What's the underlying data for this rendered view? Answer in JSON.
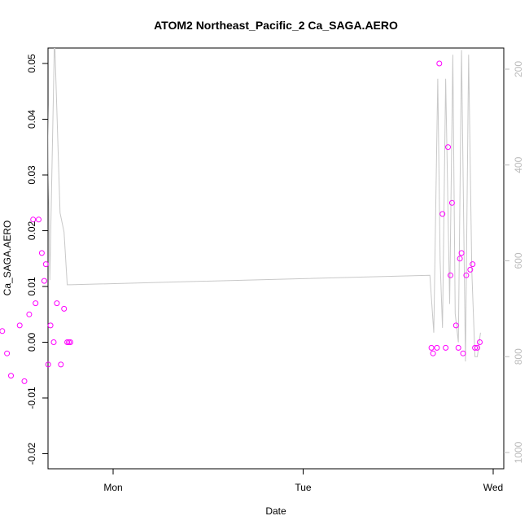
{
  "chart_data": {
    "type": "scatter",
    "title": "ATOM2 Northeast_Pacific_2 Ca_SAGA.AERO",
    "xlabel": "Date",
    "ylabel": "Ca_SAGA.AERO",
    "x_ticks": [
      "Mon",
      "Tue",
      "Wed"
    ],
    "ylim": [
      -0.022,
      0.052
    ],
    "y_ticks": [
      "-0.02",
      "-0.01",
      "0.00",
      "0.01",
      "0.02",
      "0.03",
      "0.04",
      "0.05"
    ],
    "y2_ticks": [
      "200",
      "400",
      "600",
      "800",
      "1000"
    ],
    "y2lim": [
      1030,
      168
    ],
    "grid": false,
    "colors": {
      "points": "#ff00ff",
      "line": "#c8c8c8",
      "right_axis": "#bbbbbb"
    },
    "series": [
      {
        "kind": "points",
        "x_hours": [
          -14.0,
          -13.4,
          -12.9,
          -11.8,
          -11.2,
          -10.6,
          -10.1,
          -9.8,
          -9.4,
          -9.0,
          -8.7,
          -8.5,
          -8.2,
          -7.9,
          -7.5,
          -7.1,
          -6.6,
          -6.2,
          -5.8,
          -5.6,
          -5.4,
          40.2,
          40.4,
          40.9,
          41.2,
          41.6,
          42.0,
          42.3,
          42.6,
          42.8,
          43.3,
          43.6,
          43.8,
          44.0,
          44.2,
          44.6,
          45.1,
          45.4,
          45.7,
          46.0,
          46.3
        ],
        "values": [
          0.002,
          -0.002,
          -0.006,
          0.003,
          -0.007,
          0.005,
          0.022,
          0.007,
          0.022,
          0.016,
          0.011,
          0.014,
          -0.004,
          0.003,
          0.0,
          0.007,
          -0.004,
          0.006,
          0.0,
          0.0,
          0.0,
          -0.001,
          -0.002,
          -0.001,
          0.05,
          0.023,
          -0.001,
          0.035,
          0.012,
          0.025,
          0.003,
          -0.001,
          0.015,
          0.016,
          -0.002,
          0.012,
          0.013,
          0.014,
          -0.001,
          -0.001,
          0.0
        ]
      },
      {
        "kind": "line",
        "axis": "right",
        "x_hours": [
          -14.0,
          -13.5,
          -13.0,
          -12.5,
          -11.9,
          -11.3,
          -10.9,
          -10.3,
          -9.9,
          -9.4,
          -8.9,
          -8.4,
          -8.0,
          -7.4,
          -6.7,
          -6.2,
          -5.8,
          -5.4,
          40.0,
          40.5,
          41.0,
          41.3,
          41.6,
          42.0,
          42.5,
          42.9,
          43.2,
          43.6,
          44.0,
          44.5,
          44.9,
          45.3,
          45.7,
          46.0,
          46.4
        ],
        "values": [
          540,
          700,
          750,
          460,
          520,
          770,
          680,
          140,
          580,
          150,
          560,
          110,
          640,
          130,
          500,
          540,
          650,
          650,
          630,
          750,
          220,
          600,
          740,
          220,
          690,
          170,
          710,
          770,
          160,
          810,
          170,
          620,
          800,
          800,
          750
        ]
      }
    ]
  }
}
